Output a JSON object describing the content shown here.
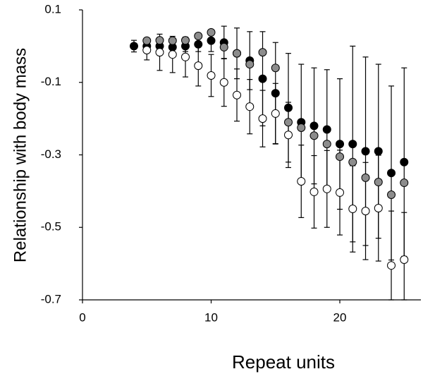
{
  "chart_data": {
    "type": "scatter",
    "x": [
      4,
      5,
      6,
      7,
      8,
      9,
      10,
      11,
      12,
      13,
      14,
      15,
      16,
      17,
      18,
      19,
      20,
      21,
      22,
      23,
      24,
      25
    ],
    "series": [
      {
        "color": "#000000",
        "values": [
          0.0,
          0.0,
          0.0,
          -0.003,
          0.0,
          0.005,
          0.015,
          0.01,
          -0.02,
          -0.04,
          -0.09,
          -0.13,
          -0.17,
          -0.21,
          -0.22,
          -0.23,
          -0.27,
          -0.27,
          -0.29,
          -0.29,
          -0.35,
          -0.32
        ],
        "errors": [
          0.016,
          0.015,
          0.015,
          0.015,
          0.015,
          0.02,
          0.03,
          0.045,
          0.07,
          0.08,
          0.13,
          0.14,
          0.15,
          0.16,
          0.16,
          0.165,
          0.18,
          0.27,
          0.26,
          0.24,
          0.24,
          0.26
        ]
      },
      {
        "color": "#8c8c8c",
        "values": [
          null,
          0.015,
          0.016,
          0.015,
          0.016,
          0.028,
          0.038,
          -0.003,
          -0.02,
          -0.05,
          -0.017,
          -0.06,
          -0.21,
          -0.225,
          -0.247,
          -0.27,
          -0.305,
          -0.32,
          -0.363,
          -0.375,
          -0.41,
          -0.377
        ]
      },
      {
        "color": "#ffffff",
        "values": [
          null,
          -0.011,
          -0.017,
          -0.023,
          -0.03,
          -0.054,
          -0.081,
          -0.1,
          -0.135,
          -0.167,
          -0.2,
          -0.186,
          -0.245,
          -0.373,
          -0.402,
          -0.394,
          -0.404,
          -0.449,
          -0.455,
          -0.447,
          -0.605,
          -0.589
        ],
        "errors": [
          null,
          0.027,
          0.05,
          0.05,
          0.055,
          0.056,
          0.058,
          0.066,
          0.072,
          0.075,
          0.078,
          0.083,
          0.09,
          0.1,
          0.1,
          0.106,
          0.117,
          0.119,
          0.134,
          0.146,
          0.15,
          0.13
        ]
      }
    ],
    "x_label": "Repeat units",
    "y_label": "Relationship with body mass",
    "xlim": [
      0,
      26.3
    ],
    "xticks": [
      0,
      10,
      20
    ],
    "ylim": [
      -0.7,
      0.1
    ],
    "yticks": [
      0.1,
      -0.1,
      -0.3,
      -0.5,
      -0.7
    ]
  }
}
